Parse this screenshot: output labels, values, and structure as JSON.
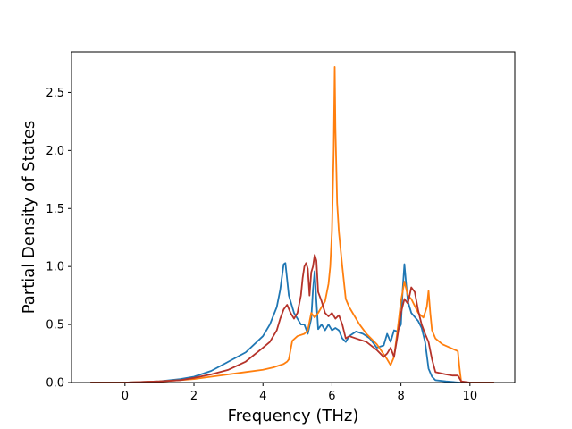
{
  "chart_data": {
    "type": "line",
    "title": "",
    "xlabel": "Frequency (THz)",
    "ylabel": "Partial Density of States",
    "xlim": [
      -1.55,
      11.3
    ],
    "ylim": [
      0.0,
      2.85
    ],
    "xticks": [
      0,
      2,
      4,
      6,
      8,
      10
    ],
    "xtick_labels": [
      "0",
      "2",
      "4",
      "6",
      "8",
      "10"
    ],
    "yticks": [
      0.0,
      0.5,
      1.0,
      1.5,
      2.0,
      2.5
    ],
    "ytick_labels": [
      "0.0",
      "0.5",
      "1.0",
      "1.5",
      "2.0",
      "2.5"
    ],
    "grid": false,
    "legend": "none",
    "series": [
      {
        "color": "#1f77b4",
        "x": [
          -1.0,
          0.0,
          1.0,
          1.6,
          2.0,
          2.5,
          3.0,
          3.5,
          4.0,
          4.2,
          4.4,
          4.5,
          4.6,
          4.65,
          4.75,
          4.9,
          5.0,
          5.1,
          5.2,
          5.3,
          5.4,
          5.45,
          5.5,
          5.55,
          5.6,
          5.7,
          5.8,
          5.9,
          6.0,
          6.1,
          6.2,
          6.3,
          6.4,
          6.5,
          6.7,
          6.9,
          7.1,
          7.3,
          7.5,
          7.6,
          7.7,
          7.8,
          7.9,
          8.0,
          8.05,
          8.1,
          8.15,
          8.2,
          8.3,
          8.5,
          8.6,
          8.7,
          8.8,
          8.9,
          9.0,
          9.3,
          9.7,
          10.0,
          10.7
        ],
        "values": [
          0.0,
          0.0,
          0.01,
          0.03,
          0.05,
          0.1,
          0.18,
          0.26,
          0.4,
          0.5,
          0.65,
          0.8,
          1.02,
          1.03,
          0.75,
          0.6,
          0.55,
          0.5,
          0.5,
          0.42,
          0.55,
          0.8,
          0.96,
          0.7,
          0.46,
          0.5,
          0.45,
          0.5,
          0.45,
          0.47,
          0.45,
          0.38,
          0.35,
          0.4,
          0.44,
          0.42,
          0.38,
          0.3,
          0.32,
          0.42,
          0.35,
          0.45,
          0.44,
          0.5,
          0.8,
          1.02,
          0.85,
          0.7,
          0.6,
          0.53,
          0.47,
          0.35,
          0.12,
          0.05,
          0.02,
          0.01,
          0.0,
          0.0,
          0.0
        ]
      },
      {
        "color": "#ff7f0e",
        "x": [
          -1.0,
          0.0,
          1.0,
          1.6,
          2.0,
          2.5,
          3.0,
          3.5,
          4.0,
          4.3,
          4.6,
          4.7,
          4.75,
          4.85,
          5.0,
          5.2,
          5.3,
          5.4,
          5.5,
          5.6,
          5.7,
          5.8,
          5.9,
          5.95,
          6.0,
          6.05,
          6.08,
          6.1,
          6.15,
          6.2,
          6.3,
          6.4,
          6.5,
          6.6,
          6.8,
          7.0,
          7.3,
          7.6,
          7.7,
          7.8,
          7.9,
          8.0,
          8.1,
          8.2,
          8.3,
          8.5,
          8.65,
          8.75,
          8.8,
          8.85,
          8.9,
          9.0,
          9.2,
          9.5,
          9.65,
          9.7,
          9.75,
          10.0,
          10.7
        ],
        "values": [
          0.0,
          0.0,
          0.01,
          0.02,
          0.03,
          0.05,
          0.07,
          0.09,
          0.11,
          0.13,
          0.16,
          0.18,
          0.2,
          0.36,
          0.4,
          0.42,
          0.45,
          0.6,
          0.56,
          0.6,
          0.65,
          0.7,
          0.85,
          1.0,
          1.3,
          2.0,
          2.72,
          2.2,
          1.55,
          1.3,
          1.0,
          0.72,
          0.65,
          0.6,
          0.5,
          0.42,
          0.33,
          0.2,
          0.15,
          0.22,
          0.45,
          0.7,
          0.87,
          0.75,
          0.72,
          0.6,
          0.56,
          0.65,
          0.79,
          0.6,
          0.45,
          0.38,
          0.33,
          0.29,
          0.27,
          0.12,
          0.0,
          0.0,
          0.0
        ]
      },
      {
        "color": "#b5332a",
        "x": [
          -1.0,
          0.0,
          1.0,
          1.6,
          2.0,
          2.5,
          3.0,
          3.5,
          4.0,
          4.2,
          4.4,
          4.5,
          4.6,
          4.7,
          4.8,
          4.9,
          5.0,
          5.1,
          5.15,
          5.2,
          5.25,
          5.3,
          5.35,
          5.4,
          5.45,
          5.5,
          5.55,
          5.6,
          5.7,
          5.8,
          5.9,
          6.0,
          6.1,
          6.2,
          6.3,
          6.4,
          6.5,
          6.7,
          7.0,
          7.3,
          7.5,
          7.6,
          7.7,
          7.8,
          7.9,
          8.0,
          8.1,
          8.2,
          8.3,
          8.4,
          8.5,
          8.6,
          8.7,
          8.8,
          8.9,
          9.0,
          9.3,
          9.5,
          9.65,
          9.75,
          10.0,
          10.7
        ],
        "values": [
          0.0,
          0.0,
          0.01,
          0.02,
          0.04,
          0.07,
          0.11,
          0.18,
          0.3,
          0.35,
          0.45,
          0.55,
          0.63,
          0.67,
          0.6,
          0.55,
          0.6,
          0.75,
          0.9,
          1.0,
          1.03,
          0.98,
          0.75,
          0.95,
          1.0,
          1.1,
          1.05,
          0.78,
          0.7,
          0.6,
          0.57,
          0.6,
          0.55,
          0.58,
          0.5,
          0.38,
          0.4,
          0.38,
          0.35,
          0.28,
          0.22,
          0.25,
          0.3,
          0.22,
          0.4,
          0.6,
          0.72,
          0.68,
          0.82,
          0.78,
          0.62,
          0.5,
          0.42,
          0.35,
          0.2,
          0.09,
          0.07,
          0.06,
          0.06,
          0.01,
          0.0,
          0.0
        ]
      }
    ]
  }
}
